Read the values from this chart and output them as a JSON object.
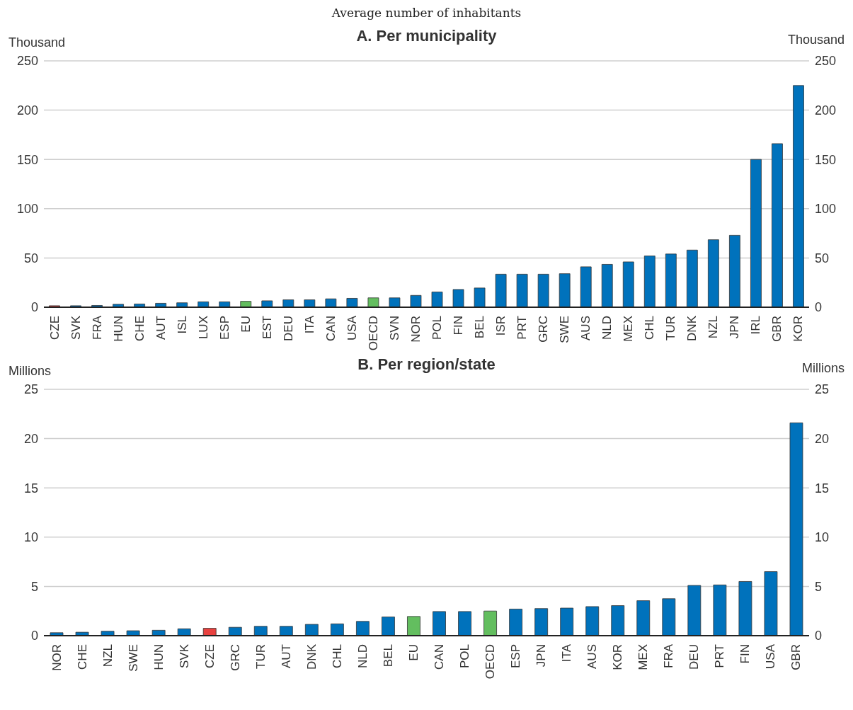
{
  "chart_data": [
    {
      "type": "bar",
      "subtitle": "Average number of inhabitants",
      "title": "A. Per municipality",
      "ylabel": "Thousand",
      "y2label": "Thousand",
      "categories": [
        "CZE",
        "SVK",
        "FRA",
        "HUN",
        "CHE",
        "AUT",
        "ISL",
        "LUX",
        "ESP",
        "EU",
        "EST",
        "DEU",
        "ITA",
        "CAN",
        "USA",
        "OECD",
        "SVN",
        "NOR",
        "POL",
        "FIN",
        "BEL",
        "ISR",
        "PRT",
        "GRC",
        "SWE",
        "AUS",
        "NLD",
        "MEX",
        "CHL",
        "TUR",
        "DNK",
        "NZL",
        "JPN",
        "IRL",
        "GBR",
        "KOR"
      ],
      "values": [
        1.5,
        1.5,
        1.8,
        3,
        3.3,
        4,
        4.5,
        5.5,
        5.5,
        6,
        6.5,
        7.5,
        7.5,
        8.5,
        9,
        9.5,
        9.5,
        12,
        15.5,
        18,
        19.5,
        33.5,
        33.5,
        33.5,
        34,
        41,
        43.5,
        46,
        52,
        54,
        58,
        68.5,
        73,
        150,
        166,
        225
      ],
      "colors": [
        "#e8413f",
        "#0072bc",
        "#0072bc",
        "#0072bc",
        "#0072bc",
        "#0072bc",
        "#0072bc",
        "#0072bc",
        "#0072bc",
        "#63be5f",
        "#0072bc",
        "#0072bc",
        "#0072bc",
        "#0072bc",
        "#0072bc",
        "#63be5f",
        "#0072bc",
        "#0072bc",
        "#0072bc",
        "#0072bc",
        "#0072bc",
        "#0072bc",
        "#0072bc",
        "#0072bc",
        "#0072bc",
        "#0072bc",
        "#0072bc",
        "#0072bc",
        "#0072bc",
        "#0072bc",
        "#0072bc",
        "#0072bc",
        "#0072bc",
        "#0072bc",
        "#0072bc",
        "#0072bc"
      ],
      "ylim": [
        0,
        250
      ],
      "yticks": [
        0,
        50,
        100,
        150,
        200,
        250
      ],
      "y2lim": [
        0,
        250
      ],
      "y2ticks": [
        0,
        50,
        100,
        150,
        200,
        250
      ],
      "grid": "y"
    },
    {
      "type": "bar",
      "title": "B. Per region/state",
      "ylabel": "Millions",
      "y2label": "Millions",
      "categories": [
        "NOR",
        "CHE",
        "NZL",
        "SWE",
        "HUN",
        "SVK",
        "CZE",
        "GRC",
        "TUR",
        "AUT",
        "DNK",
        "CHL",
        "NLD",
        "BEL",
        "EU",
        "CAN",
        "POL",
        "OECD",
        "ESP",
        "JPN",
        "ITA",
        "AUS",
        "KOR",
        "MEX",
        "FRA",
        "DEU",
        "PRT",
        "FIN",
        "USA",
        "GBR"
      ],
      "values": [
        0.3,
        0.35,
        0.45,
        0.5,
        0.55,
        0.7,
        0.75,
        0.85,
        0.95,
        0.95,
        1.15,
        1.2,
        1.45,
        1.9,
        1.95,
        2.45,
        2.45,
        2.5,
        2.7,
        2.75,
        2.8,
        2.95,
        3.05,
        3.55,
        3.75,
        5.1,
        5.15,
        5.5,
        6.5,
        21.6
      ],
      "colors": [
        "#0072bc",
        "#0072bc",
        "#0072bc",
        "#0072bc",
        "#0072bc",
        "#0072bc",
        "#e8413f",
        "#0072bc",
        "#0072bc",
        "#0072bc",
        "#0072bc",
        "#0072bc",
        "#0072bc",
        "#0072bc",
        "#63be5f",
        "#0072bc",
        "#0072bc",
        "#63be5f",
        "#0072bc",
        "#0072bc",
        "#0072bc",
        "#0072bc",
        "#0072bc",
        "#0072bc",
        "#0072bc",
        "#0072bc",
        "#0072bc",
        "#0072bc",
        "#0072bc",
        "#0072bc"
      ],
      "ylim": [
        0,
        25
      ],
      "yticks": [
        0,
        5,
        10,
        15,
        20,
        25
      ],
      "y2lim": [
        0,
        25
      ],
      "y2ticks": [
        0,
        5,
        10,
        15,
        20,
        25
      ],
      "grid": "y"
    }
  ]
}
